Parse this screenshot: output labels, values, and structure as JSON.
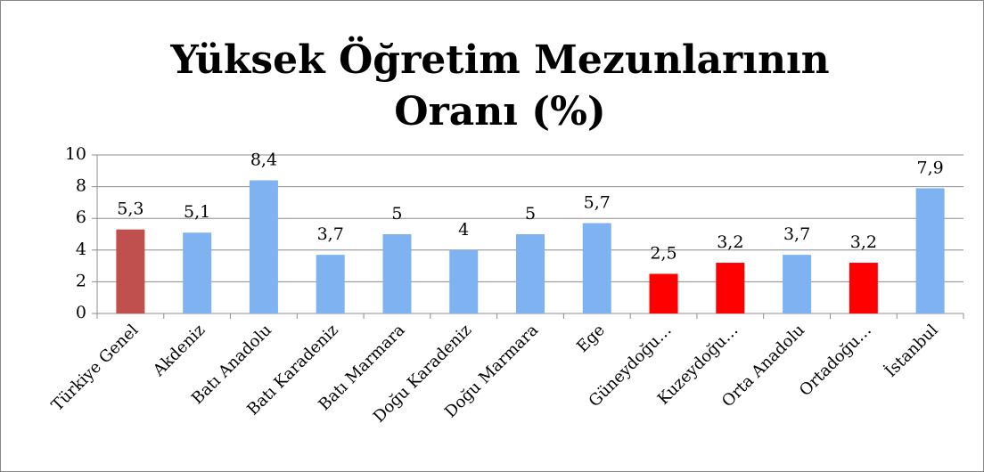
{
  "chart_data": {
    "type": "bar",
    "title": "Yüksek Öğretim Mezunlarının Oranı (%)",
    "categories": [
      "Türkiye Genel",
      "Akdeniz",
      "Batı Anadolu",
      "Batı Karadeniz",
      "Batı Marmara",
      "Doğu Karadeniz",
      "Doğu Marmara",
      "Ege",
      "Güneydoğu…",
      "Kuzeydoğu…",
      "Orta Anadolu",
      "Ortadoğu…",
      "İstanbul"
    ],
    "values": [
      5.3,
      5.1,
      8.4,
      3.7,
      5,
      4,
      5,
      5.7,
      2.5,
      3.2,
      3.7,
      3.2,
      7.9
    ],
    "value_labels": [
      "5,3",
      "5,1",
      "8,4",
      "3,7",
      "5",
      "4",
      "5",
      "5,7",
      "2,5",
      "3,2",
      "3,7",
      "3,2",
      "7,9"
    ],
    "colors": [
      "#c0504d",
      "#7eb2f0",
      "#7eb2f0",
      "#7eb2f0",
      "#7eb2f0",
      "#7eb2f0",
      "#7eb2f0",
      "#7eb2f0",
      "#ff0000",
      "#ff0000",
      "#7eb2f0",
      "#ff0000",
      "#7eb2f0"
    ],
    "ylim": [
      0,
      10
    ],
    "yticks": [
      0,
      2,
      4,
      6,
      8,
      10
    ],
    "grid": true
  }
}
